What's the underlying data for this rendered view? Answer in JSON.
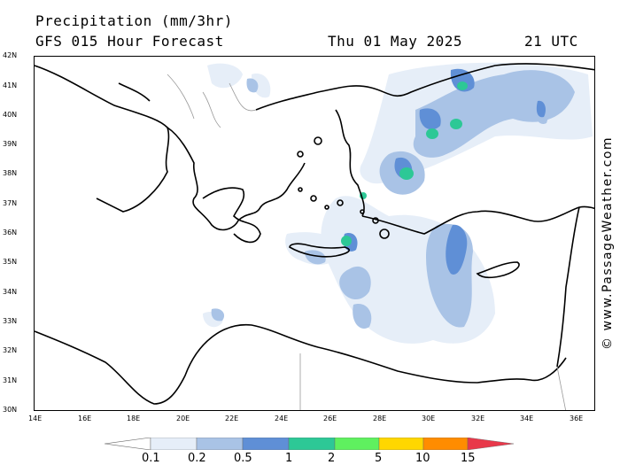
{
  "header": {
    "title": "Precipitation (mm/3hr)",
    "subtitle": "GFS 015 Hour Forecast",
    "date": "Thu 01 May 2025",
    "time": "21 UTC"
  },
  "map": {
    "lat_labels": [
      "42N",
      "41N",
      "40N",
      "39N",
      "38N",
      "37N",
      "36N",
      "35N",
      "34N",
      "33N",
      "32N",
      "31N",
      "30N"
    ],
    "lon_labels": [
      "14E",
      "16E",
      "18E",
      "20E",
      "22E",
      "24E",
      "26E",
      "28E",
      "30E",
      "32E",
      "34E",
      "36E"
    ]
  },
  "legend": {
    "labels": [
      "0.1",
      "0.2",
      "0.5",
      "1",
      "2",
      "5",
      "10",
      "15"
    ],
    "colors": [
      "#ffffff",
      "#e6eef8",
      "#a9c3e6",
      "#5f8fd6",
      "#2dc896",
      "#5ff05f",
      "#ffd700",
      "#ff8c00",
      "#e8384a"
    ]
  },
  "copyright": "© www.PassageWeather.com"
}
